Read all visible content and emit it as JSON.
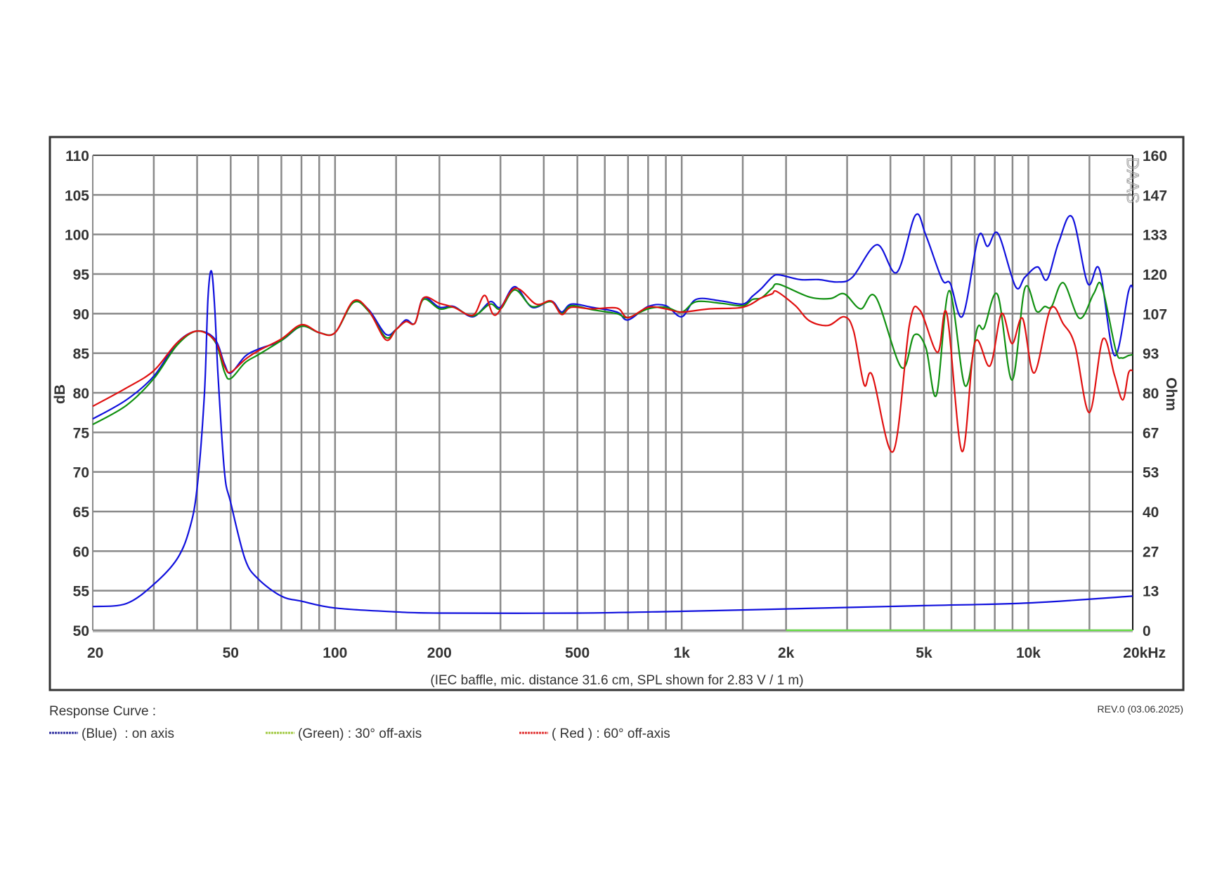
{
  "chart_data": {
    "type": "line",
    "title": "",
    "caption": "(IEC baffle, mic. distance 31.6 cm, SPL shown for 2.83 V / 1 m)",
    "xscale": "log",
    "xlim": [
      20,
      20000
    ],
    "ylabel": "dB",
    "ylim": [
      50,
      110
    ],
    "y2label": "Ohm",
    "y2lim": [
      0,
      160
    ],
    "grid": true,
    "x_tick_labels": [
      {
        "value": 20,
        "label": "20"
      },
      {
        "value": 50,
        "label": "50"
      },
      {
        "value": 100,
        "label": "100"
      },
      {
        "value": 200,
        "label": "200"
      },
      {
        "value": 500,
        "label": "500"
      },
      {
        "value": 1000,
        "label": "1k"
      },
      {
        "value": 2000,
        "label": "2k"
      },
      {
        "value": 5000,
        "label": "5k"
      },
      {
        "value": 10000,
        "label": "10k"
      },
      {
        "value": 20000,
        "label": "20kHz"
      }
    ],
    "x_gridlines": [
      30,
      40,
      50,
      60,
      70,
      80,
      90,
      100,
      150,
      200,
      300,
      400,
      500,
      600,
      700,
      800,
      900,
      1000,
      1500,
      2000,
      3000,
      4000,
      5000,
      6000,
      7000,
      8000,
      9000,
      10000,
      15000
    ],
    "y_ticks": [
      "110",
      "105",
      "100",
      "95",
      "90",
      "85",
      "80",
      "75",
      "70",
      "65",
      "60",
      "55",
      "50"
    ],
    "y2_ticks": [
      "160",
      "147",
      "133",
      "120",
      "107",
      "93",
      "80",
      "67",
      "53",
      "40",
      "27",
      "13",
      "0"
    ],
    "series": [
      {
        "key": "blue",
        "axis": "dB",
        "color": "#1010dd",
        "x": [
          20,
          25,
          30,
          35,
          40,
          45,
          48,
          50,
          55,
          60,
          70,
          80,
          90,
          100,
          113,
          125,
          140,
          150,
          160,
          170,
          180,
          200,
          220,
          250,
          280,
          300,
          330,
          370,
          420,
          450,
          480,
          550,
          650,
          700,
          800,
          900,
          1000,
          1100,
          1300,
          1500,
          1600,
          1700,
          1822,
          1908,
          2194,
          2484,
          2810,
          3108,
          3658,
          4172,
          4720,
          5062,
          5640,
          5954,
          6464,
          7172,
          7628,
          8178,
          9184,
          9770,
          10636,
          11316,
          12226,
          13376,
          14838,
          16032,
          17724,
          19450,
          20000
        ],
        "values": [
          76.7,
          79.1,
          82.1,
          86.3,
          87.8,
          86.8,
          83.6,
          82.5,
          84.6,
          85.5,
          86.6,
          88.4,
          87.6,
          87.6,
          91.5,
          90.5,
          87.4,
          88.0,
          89.2,
          88.8,
          92.0,
          90.8,
          90.9,
          89.6,
          91.5,
          90.8,
          93.4,
          90.8,
          91.6,
          90.2,
          91.2,
          90.8,
          90.2,
          89.2,
          90.9,
          91.0,
          89.6,
          91.8,
          91.6,
          91.2,
          92.2,
          93.2,
          94.6,
          94.9,
          94.3,
          94.3,
          94.0,
          94.6,
          98.7,
          95.2,
          102.4,
          99.9,
          94.3,
          93.8,
          89.7,
          99.7,
          98.5,
          100.1,
          93.4,
          94.6,
          95.9,
          94.3,
          99.0,
          102.2,
          93.8,
          95.6,
          84.7,
          92.8,
          93.3
        ]
      },
      {
        "key": "green",
        "axis": "dB",
        "color": "#109010",
        "x": [
          20,
          25,
          30,
          35,
          40,
          45,
          48,
          50,
          55,
          60,
          70,
          80,
          90,
          100,
          113,
          125,
          140,
          150,
          160,
          170,
          180,
          200,
          220,
          250,
          280,
          300,
          330,
          370,
          420,
          450,
          480,
          550,
          650,
          700,
          800,
          900,
          1000,
          1100,
          1300,
          1500,
          1600,
          1700,
          1822,
          1908,
          2334,
          2684,
          2944,
          3282,
          3628,
          4302,
          4684,
          5062,
          5428,
          5908,
          6564,
          7116,
          7454,
          8152,
          8972,
          9770,
          10554,
          11144,
          11672,
          12610,
          14056,
          15422,
          16280,
          17860,
          18570,
          19450,
          20000
        ],
        "values": [
          76.0,
          78.4,
          81.8,
          86.0,
          87.8,
          86.5,
          82.6,
          81.8,
          83.8,
          84.8,
          86.6,
          88.4,
          87.6,
          87.6,
          91.4,
          90.3,
          87.0,
          88.0,
          89.0,
          88.8,
          91.8,
          90.6,
          90.8,
          89.7,
          91.2,
          90.6,
          93.0,
          90.9,
          91.5,
          90.0,
          91.0,
          90.5,
          90.0,
          89.5,
          90.6,
          90.8,
          90.2,
          91.5,
          91.3,
          91.0,
          91.8,
          92.0,
          93.2,
          93.7,
          92.1,
          91.9,
          92.5,
          90.6,
          92.1,
          83.2,
          87.3,
          85.7,
          79.7,
          92.9,
          80.9,
          88.1,
          88.2,
          92.4,
          81.6,
          93.2,
          90.3,
          90.9,
          90.9,
          93.9,
          89.4,
          92.5,
          93.5,
          85.4,
          84.4,
          84.7,
          84.8
        ]
      },
      {
        "key": "red",
        "axis": "dB",
        "color": "#e01010",
        "x": [
          20,
          25,
          30,
          35,
          40,
          45,
          48,
          50,
          55,
          60,
          70,
          80,
          90,
          100,
          113,
          125,
          140,
          150,
          160,
          170,
          180,
          200,
          220,
          250,
          270,
          290,
          330,
          380,
          420,
          450,
          480,
          550,
          650,
          700,
          800,
          900,
          1000,
          1200,
          1500,
          1700,
          1822,
          1880,
          2128,
          2334,
          2642,
          2944,
          3132,
          3360,
          3546,
          4076,
          4542,
          4868,
          5468,
          5818,
          6434,
          7008,
          7746,
          8368,
          8972,
          9620,
          10392,
          11582,
          12610,
          13626,
          14998,
          16408,
          17724,
          18714,
          19450,
          20000
        ],
        "values": [
          78.3,
          80.6,
          82.8,
          86.3,
          87.8,
          86.6,
          83.3,
          82.6,
          84.2,
          85.3,
          86.8,
          88.6,
          87.6,
          87.6,
          91.6,
          90.4,
          86.7,
          88.0,
          89.0,
          88.8,
          92.0,
          91.3,
          90.8,
          89.8,
          92.3,
          89.8,
          93.2,
          91.2,
          91.6,
          89.9,
          90.8,
          90.6,
          90.7,
          89.5,
          90.8,
          90.6,
          90.2,
          90.6,
          90.8,
          92.0,
          92.5,
          92.8,
          91.0,
          89.1,
          88.5,
          89.6,
          87.8,
          81.0,
          82.2,
          72.6,
          88.7,
          90.4,
          85.1,
          90.0,
          72.6,
          86.3,
          83.4,
          90.0,
          86.2,
          89.4,
          82.5,
          90.6,
          88.7,
          86.0,
          77.5,
          86.8,
          82.2,
          79.1,
          82.5,
          82.8
        ]
      },
      {
        "key": "impedance",
        "axis": "Ohm",
        "color": "#1010dd",
        "x": [
          20,
          25,
          30,
          35,
          38,
          40,
          42,
          43,
          44,
          45,
          46,
          48,
          50,
          55,
          60,
          70,
          80,
          100,
          150,
          200,
          500,
          1000,
          2000,
          5000,
          10000,
          20000
        ],
        "values": [
          8,
          9,
          15.5,
          24,
          34,
          48,
          80,
          112,
          121,
          108,
          85,
          53,
          43,
          24,
          17.3,
          11.5,
          9.8,
          7.5,
          6.2,
          5.8,
          5.8,
          6.4,
          7.2,
          8.3,
          9.2,
          11.5
        ]
      },
      {
        "key": "green-baseline",
        "axis": "Ohm",
        "color": "#66dd44",
        "x": [
          2000,
          20000
        ],
        "values": [
          0,
          0
        ]
      }
    ],
    "legend": {
      "placement": "bottom-left",
      "title": "Response Curve :",
      "entries": [
        {
          "label": "(Blue)  : on axis",
          "color": "#3030a0"
        },
        {
          "label": "(Green) : 30° off-axis",
          "color": "#a0c840"
        },
        {
          "label": "( Red ) : 60° off-axis",
          "color": "#e03030"
        }
      ]
    },
    "revision": "REV.0 (03.06.2025)",
    "watermark": "DAAS"
  }
}
